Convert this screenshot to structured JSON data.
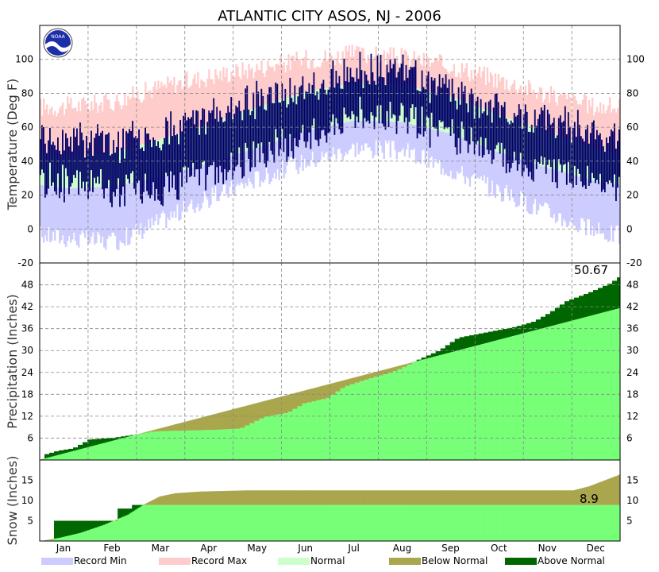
{
  "chart_data": {
    "type": "area",
    "title": "ATLANTIC CITY  ASOS, NJ - 2006",
    "months": [
      "Jan",
      "Feb",
      "Mar",
      "Apr",
      "May",
      "Jun",
      "Jul",
      "Aug",
      "Sep",
      "Oct",
      "Nov",
      "Dec"
    ],
    "logo": "NOAA",
    "panels": [
      {
        "id": "temperature",
        "ylabel": "Temperature (Deg F)",
        "ylim": [
          -20,
          120
        ],
        "yticks": [
          -20,
          0,
          20,
          40,
          60,
          80,
          100
        ],
        "grid": true,
        "series": [
          {
            "name": "Record Max",
            "color": "#ffcccc",
            "monthly_values": [
              72,
              75,
              84,
              90,
              95,
              100,
              103,
              101,
              96,
              88,
              79,
              72
            ]
          },
          {
            "name": "Normal",
            "color": "#ccffcc",
            "monthly_values": [
              [
                24,
                42
              ],
              [
                25,
                45
              ],
              [
                31,
                53
              ],
              [
                39,
                62
              ],
              [
                48,
                72
              ],
              [
                58,
                81
              ],
              [
                64,
                86
              ],
              [
                63,
                85
              ],
              [
                56,
                78
              ],
              [
                45,
                67
              ],
              [
                36,
                57
              ],
              [
                28,
                47
              ]
            ]
          },
          {
            "name": "Record Min",
            "color": "#ccccff",
            "monthly_values": [
              -5,
              -8,
              5,
              18,
              30,
              40,
              48,
              46,
              35,
              22,
              10,
              -2
            ]
          },
          {
            "name": "Observed",
            "color": "#000066",
            "monthly_values": [
              [
                28,
                52
              ],
              [
                22,
                50
              ],
              [
                25,
                56
              ],
              [
                34,
                68
              ],
              [
                42,
                76
              ],
              [
                55,
                84
              ],
              [
                66,
                92
              ],
              [
                66,
                94
              ],
              [
                55,
                80
              ],
              [
                42,
                70
              ],
              [
                35,
                64
              ],
              [
                28,
                56
              ]
            ]
          }
        ]
      },
      {
        "id": "precipitation",
        "ylabel": "Precipitation (Inches)",
        "ylim": [
          0,
          54
        ],
        "yticks": [
          6,
          12,
          18,
          24,
          30,
          36,
          42,
          48
        ],
        "grid": true,
        "annotation": "50.67",
        "normal_total": 41.6,
        "observed_cumulative": [
          [
            0,
            0
          ],
          [
            3,
            1.6
          ],
          [
            10,
            2.5
          ],
          [
            20,
            3.2
          ],
          [
            30,
            5.6
          ],
          [
            45,
            6.1
          ],
          [
            58,
            6.9
          ],
          [
            70,
            7.8
          ],
          [
            82,
            8.0
          ],
          [
            95,
            8.1
          ],
          [
            110,
            8.3
          ],
          [
            125,
            8.6
          ],
          [
            140,
            11.8
          ],
          [
            155,
            13.0
          ],
          [
            165,
            15.5
          ],
          [
            180,
            17.0
          ],
          [
            190,
            20.0
          ],
          [
            200,
            21.5
          ],
          [
            210,
            22.8
          ],
          [
            220,
            24.0
          ],
          [
            228,
            25.5
          ],
          [
            237,
            27.5
          ],
          [
            250,
            30.0
          ],
          [
            262,
            33.5
          ],
          [
            280,
            35.0
          ],
          [
            298,
            36.5
          ],
          [
            310,
            38.0
          ],
          [
            320,
            40.5
          ],
          [
            330,
            43.5
          ],
          [
            345,
            46.0
          ],
          [
            358,
            48.5
          ],
          [
            365,
            50.67
          ]
        ]
      },
      {
        "id": "snow",
        "ylabel": "Snow (Inches)",
        "ylim": [
          0,
          20
        ],
        "yticks": [
          5,
          10,
          15
        ],
        "grid": false,
        "annotation": "8.9",
        "normal_cumulative": [
          [
            0,
            0
          ],
          [
            12,
            0.8
          ],
          [
            25,
            2.0
          ],
          [
            40,
            4.0
          ],
          [
            55,
            6.5
          ],
          [
            65,
            9.0
          ],
          [
            75,
            11.0
          ],
          [
            85,
            11.8
          ],
          [
            100,
            12.2
          ],
          [
            130,
            12.5
          ],
          [
            335,
            12.5
          ],
          [
            345,
            13.5
          ],
          [
            355,
            15.0
          ],
          [
            365,
            16.5
          ]
        ],
        "observed_cumulative": [
          [
            0,
            0
          ],
          [
            8,
            0.3
          ],
          [
            9,
            5.0
          ],
          [
            48,
            5.0
          ],
          [
            49,
            8.0
          ],
          [
            57,
            8.0
          ],
          [
            58,
            8.9
          ],
          [
            365,
            8.9
          ]
        ]
      }
    ],
    "legend": [
      {
        "label": "Record Min",
        "color": "#ccccff"
      },
      {
        "label": "Record Max",
        "color": "#ffcccc"
      },
      {
        "label": "Normal",
        "color": "#ccffcc"
      },
      {
        "label": "Below Normal",
        "color": "#aaa64d"
      },
      {
        "label": "Above Normal",
        "color": "#006600"
      }
    ],
    "precip_colors": {
      "normal": "#77ff77",
      "below": "#aaa64d",
      "above": "#006600"
    }
  }
}
